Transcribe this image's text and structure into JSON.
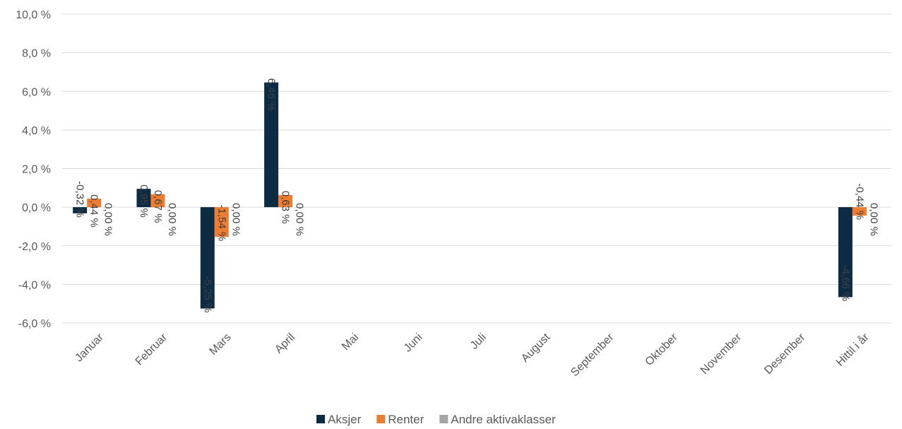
{
  "chart_data": {
    "type": "bar",
    "categories": [
      "Januar",
      "Februar",
      "Mars",
      "April",
      "Mai",
      "Juni",
      "Juli",
      "August",
      "September",
      "Oktober",
      "November",
      "Desember",
      "Hittil i år"
    ],
    "series": [
      {
        "name": "Aksjer",
        "color": "#0d2c44",
        "values": [
          -0.32,
          0.95,
          -5.25,
          6.46,
          null,
          null,
          null,
          null,
          null,
          null,
          null,
          null,
          -4.66
        ]
      },
      {
        "name": "Renter",
        "color": "#ed7d31",
        "values": [
          0.44,
          0.67,
          -1.54,
          0.63,
          null,
          null,
          null,
          null,
          null,
          null,
          null,
          null,
          -0.44
        ]
      },
      {
        "name": "Andre aktivaklasser",
        "color": "#a5a5a5",
        "values": [
          0.0,
          0.0,
          0.0,
          0.0,
          null,
          null,
          null,
          null,
          null,
          null,
          null,
          null,
          0.0
        ]
      }
    ],
    "data_labels": [
      [
        "-0,32 %",
        "0,95 %",
        "-5,25 %",
        "6,46 %",
        "",
        "",
        "",
        "",
        "",
        "",
        "",
        "",
        "-4,66 %"
      ],
      [
        "0,44 %",
        "0,67 %",
        "-1,54 %",
        "0,63 %",
        "",
        "",
        "",
        "",
        "",
        "",
        "",
        "",
        "-0,44 %"
      ],
      [
        "0,00 %",
        "0,00 %",
        "0,00 %",
        "0,00 %",
        "",
        "",
        "",
        "",
        "",
        "",
        "",
        "",
        "0,00 %"
      ]
    ],
    "yticks": [
      10,
      8,
      6,
      4,
      2,
      0,
      -2,
      -4,
      -6
    ],
    "ytick_labels": [
      "10,0 %",
      "8,0 %",
      "6,0 %",
      "4,0 %",
      "2,0 %",
      "0,0 %",
      "-2,0 %",
      "-4,0 %",
      "-6,0 %"
    ],
    "ylim": [
      -6,
      10
    ],
    "grid": true,
    "legend_position": "bottom-center"
  }
}
